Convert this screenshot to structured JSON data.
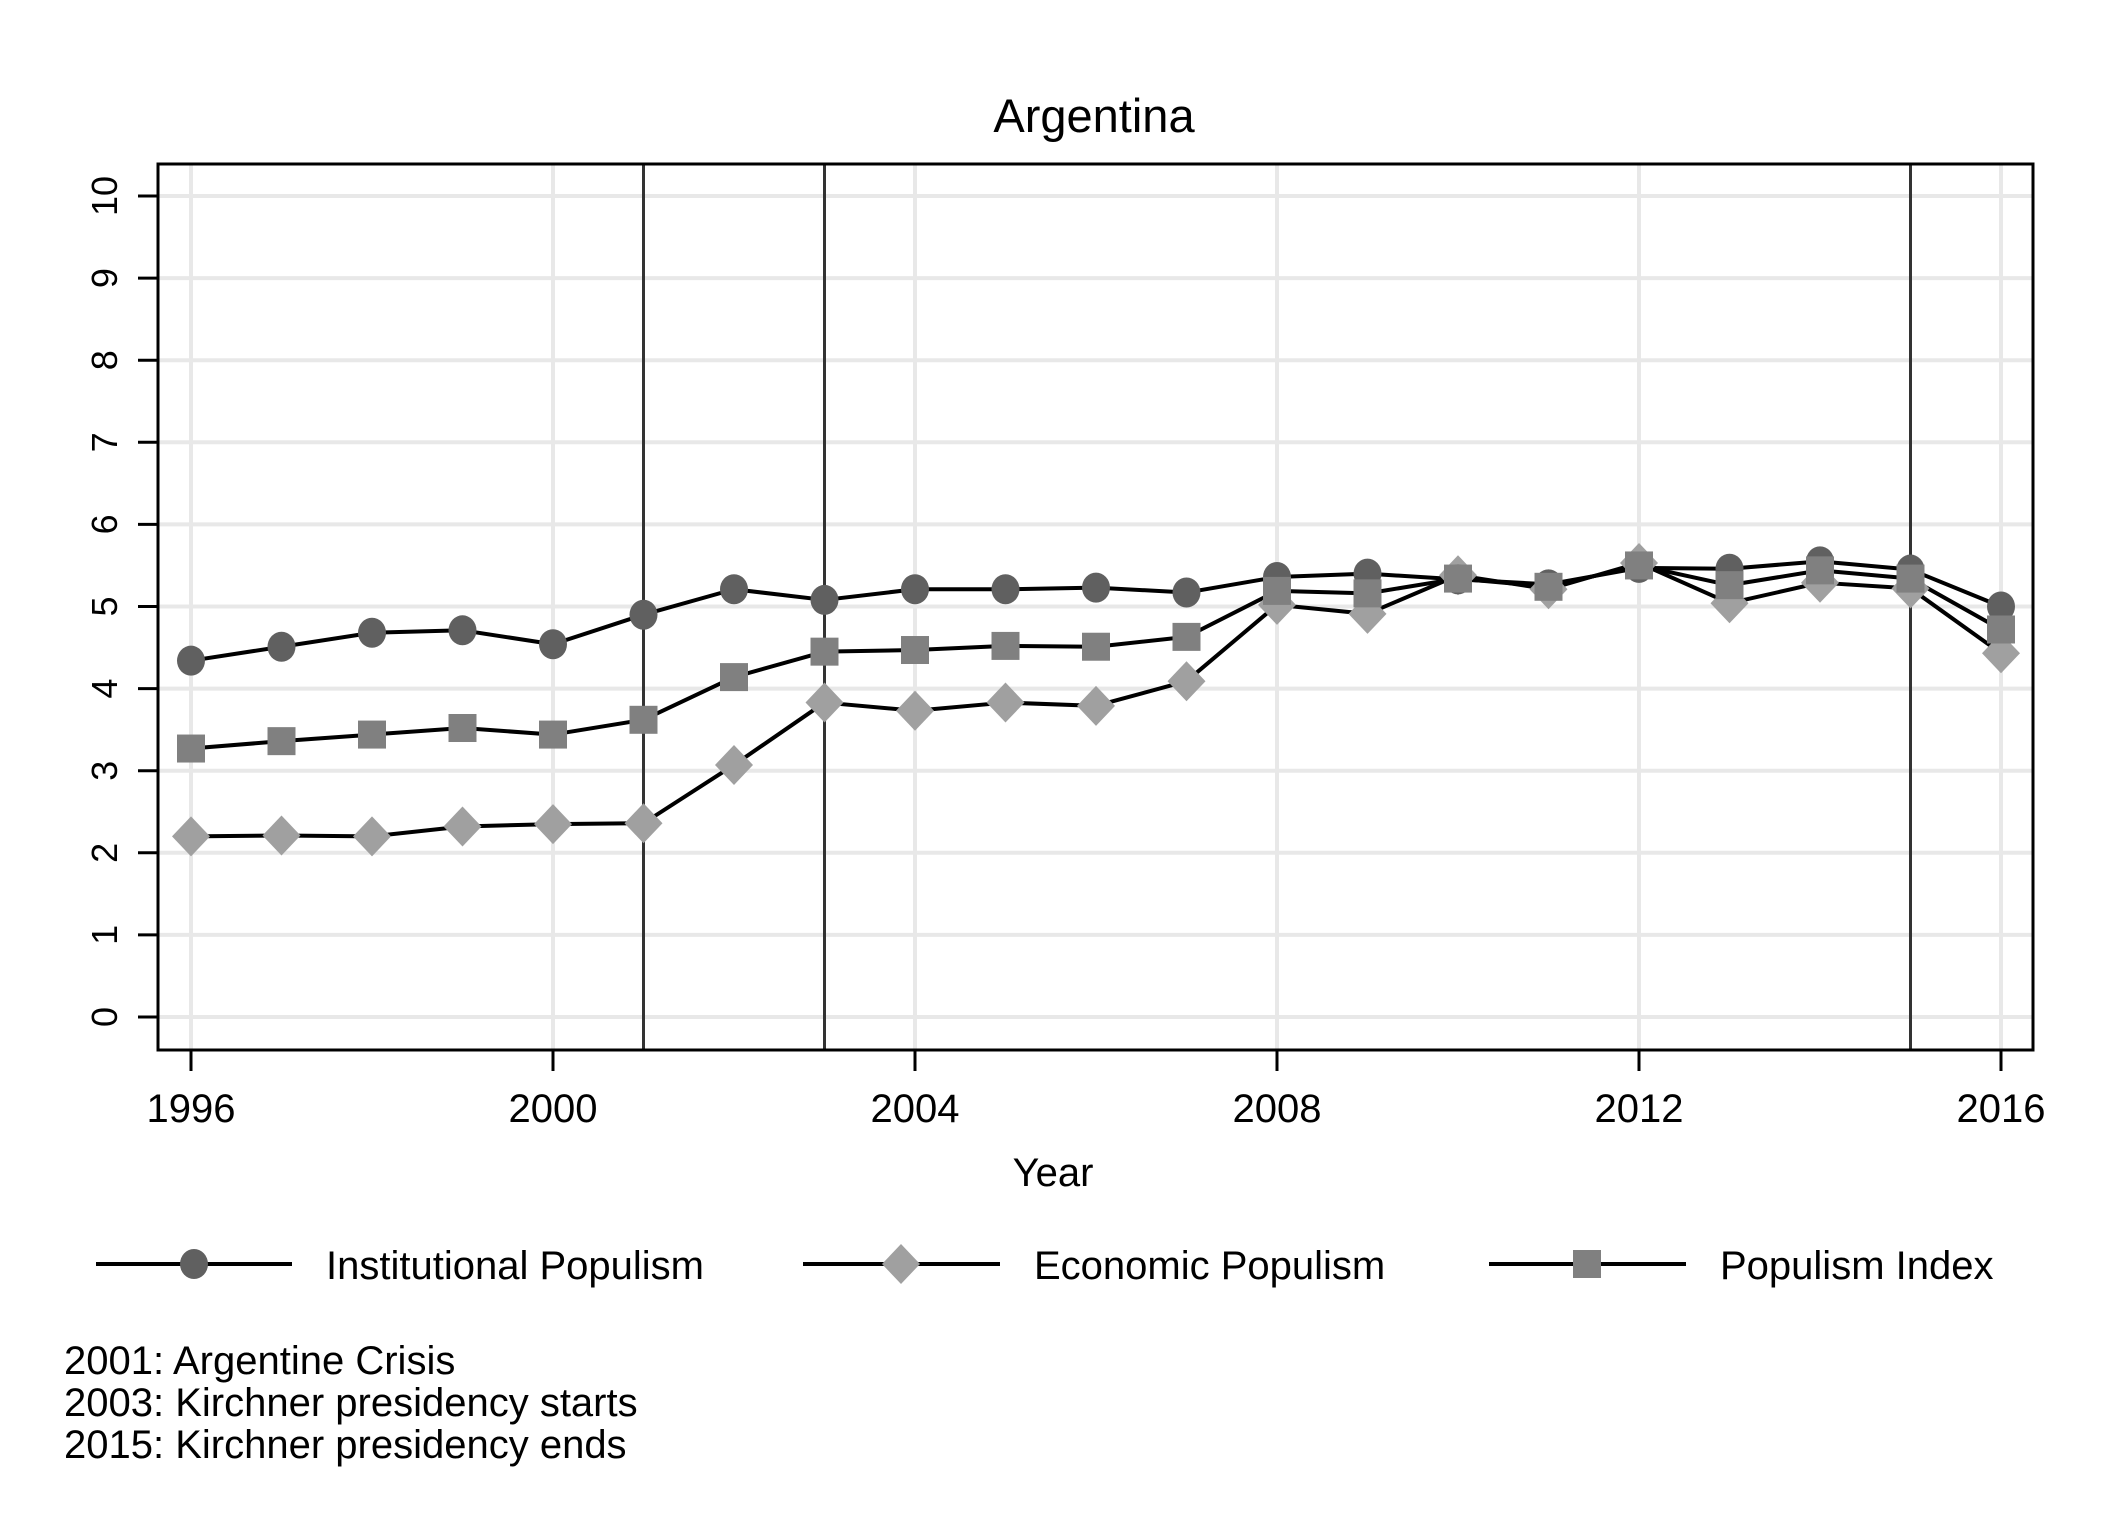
{
  "chart_data": {
    "type": "line",
    "title": "Argentina",
    "xlabel": "Year",
    "ylabel": "",
    "xlim": [
      1996,
      2016
    ],
    "ylim": [
      0,
      10
    ],
    "grid": true,
    "x_ticks": [
      "1996",
      "2000",
      "2004",
      "2008",
      "2012",
      "2016"
    ],
    "y_ticks": [
      "0",
      "1",
      "2",
      "3",
      "4",
      "5",
      "6",
      "7",
      "8",
      "9",
      "10"
    ],
    "x": [
      1996,
      1997,
      1998,
      1999,
      2000,
      2001,
      2002,
      2003,
      2004,
      2005,
      2006,
      2007,
      2008,
      2009,
      2010,
      2011,
      2012,
      2013,
      2014,
      2015,
      2016
    ],
    "series": [
      {
        "name": "Institutional Populism",
        "marker": "circle",
        "color": "#606060",
        "values": [
          4.34,
          4.51,
          4.68,
          4.71,
          4.54,
          4.9,
          5.21,
          5.08,
          5.21,
          5.21,
          5.23,
          5.17,
          5.36,
          5.4,
          5.33,
          5.27,
          5.47,
          5.46,
          5.55,
          5.45,
          5.0
        ]
      },
      {
        "name": "Economic Populism",
        "marker": "diamond",
        "color": "#a0a0a0",
        "values": [
          2.2,
          2.21,
          2.2,
          2.32,
          2.35,
          2.36,
          3.07,
          3.83,
          3.73,
          3.83,
          3.79,
          4.09,
          5.02,
          4.91,
          5.38,
          5.21,
          5.53,
          5.04,
          5.29,
          5.22,
          4.43
        ]
      },
      {
        "name": "Populism Index",
        "marker": "square",
        "color": "#808080",
        "values": [
          3.27,
          3.36,
          3.44,
          3.52,
          3.44,
          3.62,
          4.14,
          4.45,
          4.47,
          4.52,
          4.51,
          4.63,
          5.19,
          5.16,
          5.34,
          5.24,
          5.5,
          5.26,
          5.44,
          5.34,
          4.72
        ]
      }
    ],
    "event_lines": [
      2001,
      2003,
      2015
    ],
    "legend_position": "bottom",
    "notes": [
      "2001: Argentine Crisis",
      "2003: Kirchner presidency starts",
      "2015: Kirchner presidency ends"
    ]
  }
}
